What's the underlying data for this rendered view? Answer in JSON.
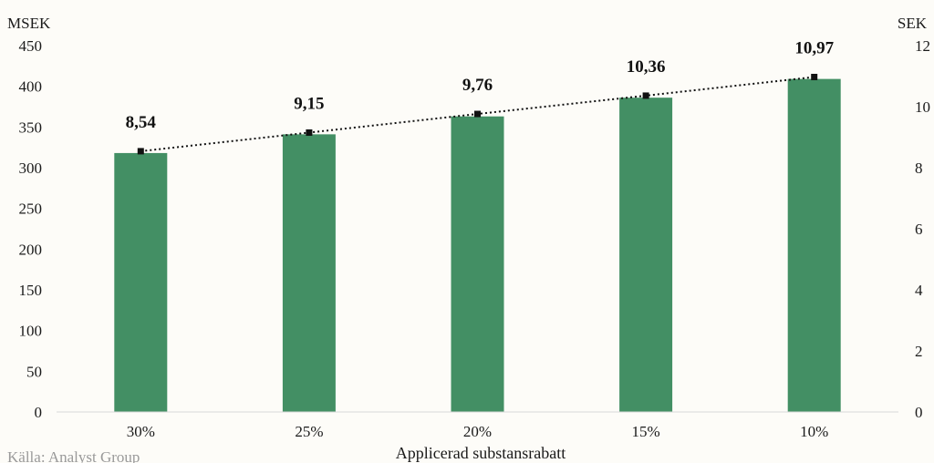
{
  "chart_data": {
    "type": "bar",
    "categories": [
      "30%",
      "25%",
      "20%",
      "15%",
      "10%"
    ],
    "series": [
      {
        "axis": "left",
        "values": [
          318,
          341,
          363,
          386,
          409
        ],
        "color": "#438f64"
      },
      {
        "axis": "right",
        "type": "line",
        "style": "dotted",
        "values": [
          8.54,
          9.15,
          9.76,
          10.36,
          10.97
        ],
        "labels": [
          "8,54",
          "9,15",
          "9,76",
          "10,36",
          "10,97"
        ],
        "color": "#111111"
      }
    ],
    "xlabel": "Applicerad substansrabatt",
    "ylabel_left": "MSEK",
    "ylabel_right": "SEK",
    "ylim_left": [
      0,
      450
    ],
    "ylim_right": [
      0,
      12
    ],
    "yticks_left": [
      "0",
      "50",
      "100",
      "150",
      "200",
      "250",
      "300",
      "350",
      "400",
      "450"
    ],
    "yticks_right": [
      "0",
      "2",
      "4",
      "6",
      "8",
      "10",
      "12"
    ],
    "grid": false,
    "source": "Källa: Analyst Group"
  }
}
